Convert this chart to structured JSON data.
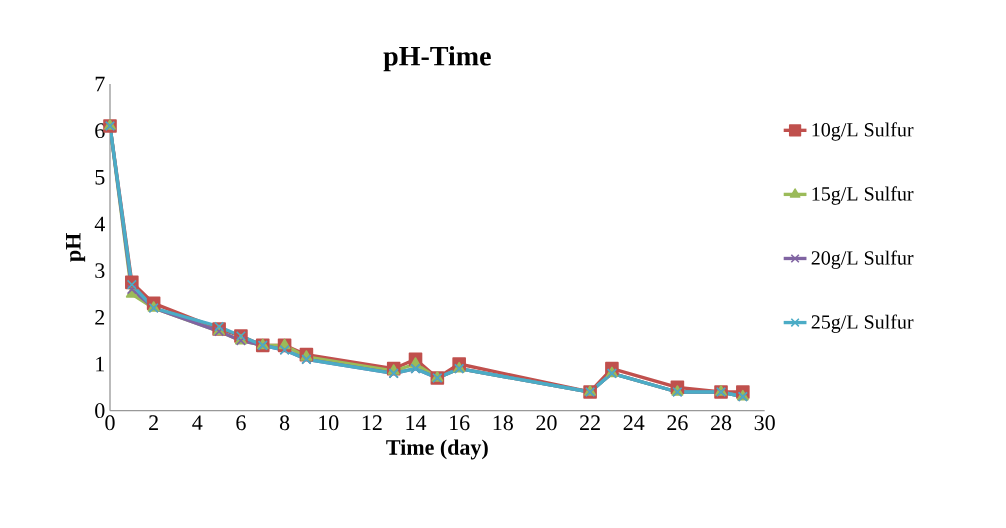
{
  "chart_data": {
    "type": "line",
    "title": "pH-Time",
    "xlabel": "Time (day)",
    "ylabel": "pH",
    "x": [
      0,
      1,
      2,
      5,
      6,
      7,
      8,
      9,
      13,
      14,
      15,
      16,
      22,
      23,
      26,
      28,
      29
    ],
    "series": [
      {
        "name": "10g/L Sulfur",
        "color": "#c0504d",
        "marker": "square",
        "values": [
          6.1,
          2.75,
          2.3,
          1.75,
          1.6,
          1.4,
          1.4,
          1.2,
          0.9,
          1.1,
          0.7,
          1.0,
          0.4,
          0.9,
          0.5,
          0.4,
          0.4
        ]
      },
      {
        "name": "15g/L Sulfur",
        "color": "#9bbb59",
        "marker": "triangle",
        "values": [
          6.1,
          2.5,
          2.2,
          1.7,
          1.5,
          1.4,
          1.4,
          1.15,
          0.85,
          1.0,
          0.7,
          0.9,
          0.4,
          0.8,
          0.4,
          0.4,
          0.3
        ]
      },
      {
        "name": "20g/L Sulfur",
        "color": "#8064a2",
        "marker": "cross",
        "values": [
          6.1,
          2.6,
          2.2,
          1.7,
          1.5,
          1.4,
          1.3,
          1.1,
          0.8,
          0.9,
          0.7,
          0.9,
          0.4,
          0.8,
          0.4,
          0.4,
          0.3
        ]
      },
      {
        "name": "25g/L Sulfur",
        "color": "#4bacc6",
        "marker": "cross",
        "values": [
          6.1,
          2.7,
          2.2,
          1.8,
          1.6,
          1.4,
          1.3,
          1.1,
          0.8,
          0.9,
          0.7,
          0.9,
          0.4,
          0.8,
          0.4,
          0.4,
          0.3
        ]
      }
    ],
    "xlim": [
      0,
      30
    ],
    "xticks": [
      0,
      2,
      4,
      6,
      8,
      10,
      12,
      14,
      16,
      18,
      20,
      22,
      24,
      26,
      28,
      30
    ],
    "ylim": [
      0,
      7
    ],
    "yticks": [
      0,
      1,
      2,
      3,
      4,
      5,
      6,
      7
    ],
    "grid": false,
    "legend": "right",
    "line_style": "solid"
  }
}
